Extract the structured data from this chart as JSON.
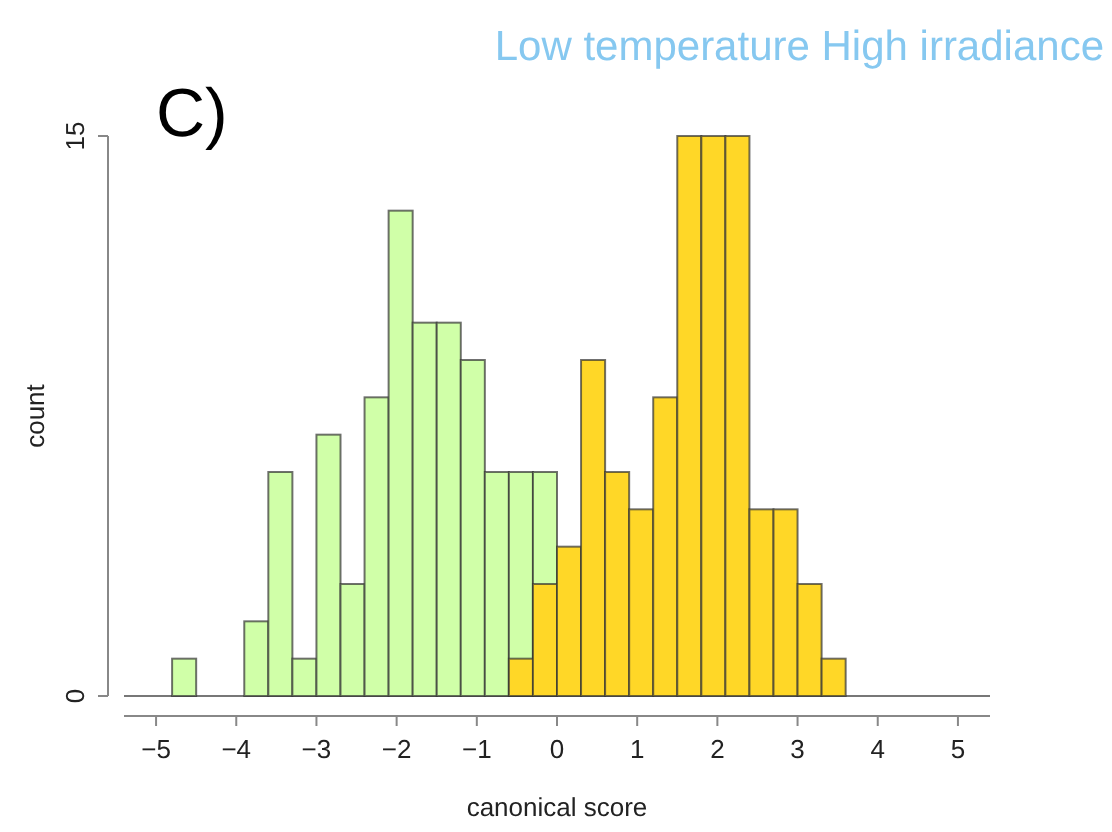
{
  "chart_data": {
    "type": "histogram",
    "title": "Low temperature High irradiance",
    "annotations": [
      "C)"
    ],
    "xlabel": "canonical score",
    "ylabel": "count",
    "bins": [
      -4.8,
      -4.5,
      -4.2,
      -3.9,
      -3.6,
      -3.3,
      -3.0,
      -2.7,
      -2.4,
      -2.1,
      -1.8,
      -1.5,
      -1.2,
      -0.9,
      -0.6,
      -0.3,
      0,
      0.3,
      0.6,
      0.9,
      1.2,
      1.5,
      1.8,
      2.1,
      2.4,
      2.7,
      3.0,
      3.3,
      3.6
    ],
    "series": [
      {
        "color": "#d0ffa8",
        "values": [
          1,
          0,
          0,
          2,
          6,
          1,
          7,
          3,
          8,
          13,
          10,
          10,
          9,
          6,
          6,
          6,
          null,
          null,
          null,
          null,
          null,
          null,
          null,
          null,
          null,
          null,
          null,
          null
        ]
      },
      {
        "color": "#ffd727",
        "values": [
          null,
          null,
          null,
          null,
          null,
          null,
          null,
          null,
          null,
          null,
          null,
          null,
          null,
          null,
          1,
          3,
          4,
          9,
          6,
          5,
          8,
          15,
          15,
          15,
          5,
          5,
          3,
          1
        ]
      }
    ],
    "xlim": [
      -5.4,
      5.4
    ],
    "xticks": [
      -5,
      -4,
      -3,
      -2,
      -1,
      0,
      1,
      2,
      3,
      4,
      5
    ],
    "ylim": [
      0,
      15
    ],
    "yticks": [
      0,
      15
    ],
    "grid": false
  }
}
